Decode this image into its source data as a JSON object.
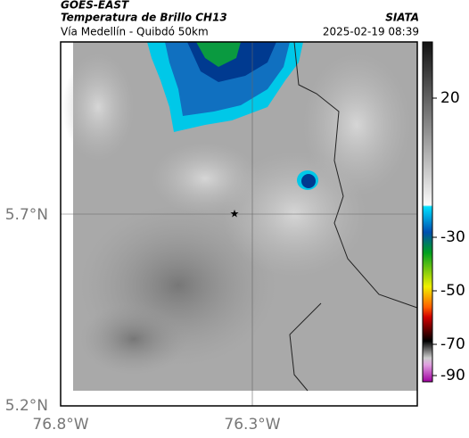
{
  "header": {
    "title": "GOES-EAST",
    "subtitle": "Temperatura de Brillo CH13",
    "location": "Vía Medellín - Quibdó 50km",
    "source": "SIATA",
    "timestamp": "2025-02-19 08:39"
  },
  "axes": {
    "yticks": [
      "5.7°N",
      "5.2°N"
    ],
    "xticks": [
      "76.8°W",
      "76.3°W"
    ]
  },
  "colorbar": {
    "ticks": [
      20,
      -30,
      -50,
      -70,
      -90
    ]
  }
}
